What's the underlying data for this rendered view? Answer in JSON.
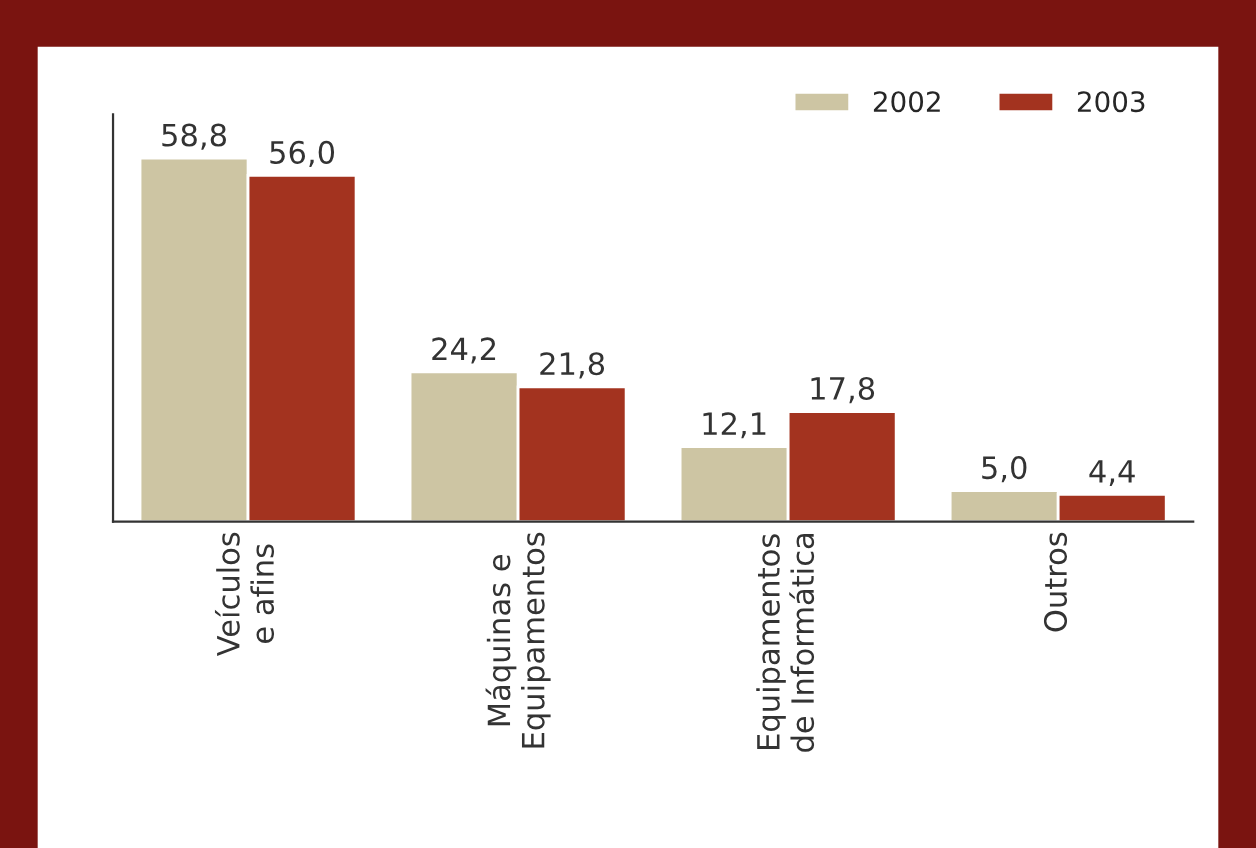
{
  "chart_data": {
    "type": "bar",
    "categories": [
      "Veículos\ne afins",
      "Máquinas e\nEquipamentos",
      "Equipamentos\nde Informática",
      "Outros"
    ],
    "series": [
      {
        "name": "2002",
        "color": "#cdc5a3",
        "values": [
          58.8,
          24.2,
          12.1,
          5.0
        ],
        "value_labels": [
          "58,8",
          "24,2",
          "12,1",
          "5,0"
        ]
      },
      {
        "name": "2003",
        "color": "#a3331f",
        "values": [
          56.0,
          21.8,
          17.8,
          4.4
        ],
        "value_labels": [
          "56,0",
          "21,8",
          "17,8",
          "4,4"
        ]
      }
    ],
    "legend": "top right",
    "grid": false
  }
}
